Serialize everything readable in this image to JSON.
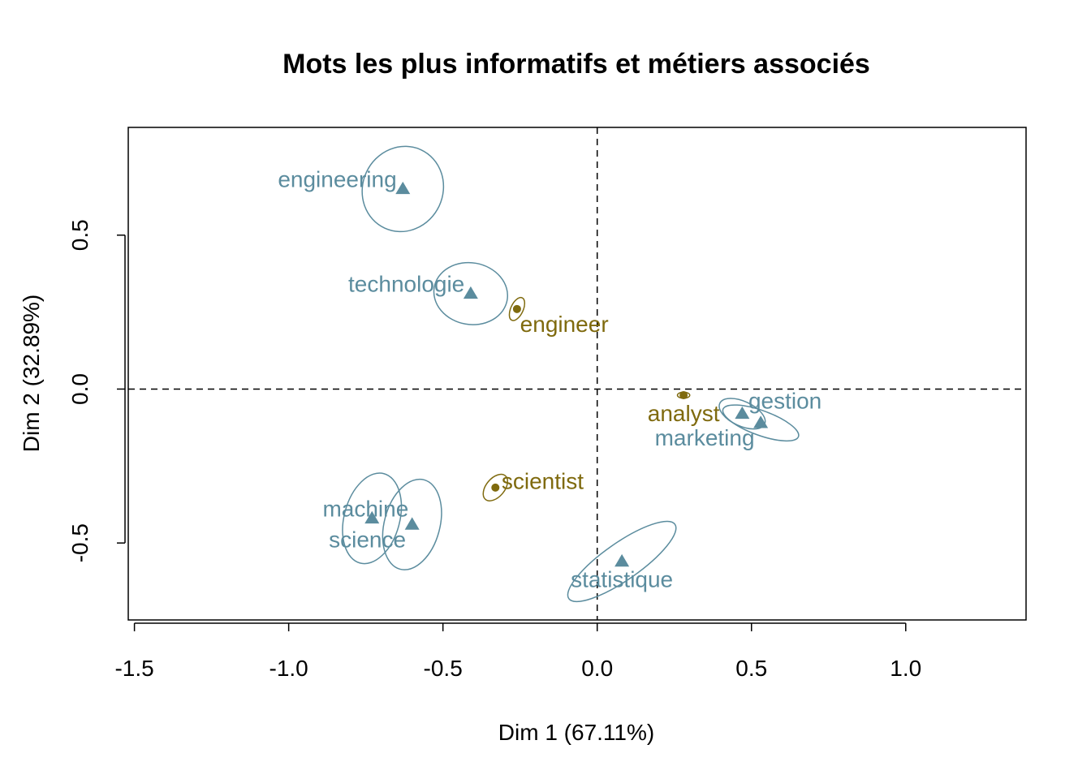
{
  "chart_data": {
    "type": "scatter",
    "title": "Mots les plus informatifs et métiers associés",
    "xlabel": "Dim 1 (67.11%)",
    "ylabel": "Dim 2 (32.89%)",
    "xlim": [
      -1.52,
      1.39
    ],
    "ylim": [
      -0.75,
      0.85
    ],
    "x_ticks": [
      {
        "value": -1.5,
        "label": "-1.5"
      },
      {
        "value": -1.0,
        "label": "-1.0"
      },
      {
        "value": -0.5,
        "label": "-0.5"
      },
      {
        "value": 0.0,
        "label": "0.0"
      },
      {
        "value": 0.5,
        "label": "0.5"
      },
      {
        "value": 1.0,
        "label": "1.0"
      }
    ],
    "y_ticks": [
      {
        "value": -0.5,
        "label": "-0.5"
      },
      {
        "value": 0.0,
        "label": "0.0"
      },
      {
        "value": 0.5,
        "label": "0.5"
      }
    ],
    "reference_lines": {
      "x": 0,
      "y": 0,
      "style": "dashed"
    },
    "colors": {
      "words": "#5B8C9E",
      "jobs": "#7F6A0E",
      "axes": "#000000"
    },
    "series": [
      {
        "marker": "triangle",
        "color": "#5B8C9E",
        "points": [
          {
            "label": "engineering",
            "x": -0.63,
            "y": 0.65,
            "ellipse": {
              "rx": 0.14,
              "ry": 0.13,
              "angle": -65
            },
            "label_anchor": "end",
            "label_dx": -0.02,
            "label_dy": 0.03
          },
          {
            "label": "technologie",
            "x": -0.41,
            "y": 0.31,
            "ellipse": {
              "rx": 0.1,
              "ry": 0.12,
              "angle": -80
            },
            "label_anchor": "end",
            "label_dx": -0.02,
            "label_dy": 0.03
          },
          {
            "label": "gestion",
            "x": 0.53,
            "y": -0.11,
            "ellipse": {
              "rx": 0.13,
              "ry": 0.04,
              "angle": 20
            },
            "label_anchor": "start",
            "label_dx": -0.04,
            "label_dy": 0.07
          },
          {
            "label": "marketing",
            "x": 0.47,
            "y": -0.08,
            "ellipse": {
              "rx": 0.08,
              "ry": 0.04,
              "angle": 25
            },
            "label_anchor": "end",
            "label_dx": 0.04,
            "label_dy": -0.08
          },
          {
            "label": "machine",
            "x": -0.73,
            "y": -0.42,
            "ellipse": {
              "rx": 0.15,
              "ry": 0.09,
              "angle": -75
            },
            "label_anchor": "start",
            "label_dx": -0.16,
            "label_dy": 0.03
          },
          {
            "label": "science",
            "x": -0.6,
            "y": -0.44,
            "ellipse": {
              "rx": 0.15,
              "ry": 0.09,
              "angle": -75
            },
            "label_anchor": "end",
            "label_dx": -0.02,
            "label_dy": -0.05
          },
          {
            "label": "statistique",
            "x": 0.08,
            "y": -0.56,
            "ellipse": {
              "rx": 0.21,
              "ry": 0.06,
              "angle": -35
            },
            "label_anchor": "middle",
            "label_dx": 0.0,
            "label_dy": -0.06
          }
        ]
      },
      {
        "marker": "circle",
        "color": "#7F6A0E",
        "points": [
          {
            "label": "engineer",
            "x": -0.26,
            "y": 0.26,
            "ellipse": {
              "rx": 0.04,
              "ry": 0.02,
              "angle": -65
            },
            "label_anchor": "start",
            "label_dx": 0.01,
            "label_dy": -0.05
          },
          {
            "label": "analyst",
            "x": 0.28,
            "y": -0.02,
            "ellipse": {
              "rx": 0.02,
              "ry": 0.01,
              "angle": 0
            },
            "label_anchor": "middle",
            "label_dx": 0.0,
            "label_dy": -0.06
          },
          {
            "label": "scientist",
            "x": -0.33,
            "y": -0.32,
            "ellipse": {
              "rx": 0.05,
              "ry": 0.03,
              "angle": -50
            },
            "label_anchor": "start",
            "label_dx": 0.02,
            "label_dy": 0.02
          }
        ]
      }
    ]
  }
}
